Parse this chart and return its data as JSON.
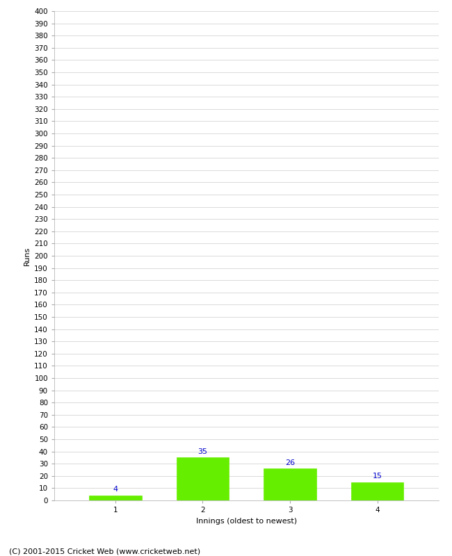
{
  "categories": [
    1,
    2,
    3,
    4
  ],
  "values": [
    4,
    35,
    26,
    15
  ],
  "bar_color": "#66ee00",
  "bar_edge_color": "#66ee00",
  "xlabel": "Innings (oldest to newest)",
  "ylabel": "Runs",
  "ylim": [
    0,
    400
  ],
  "ytick_step": 10,
  "annotation_color": "#0000cc",
  "annotation_fontsize": 8,
  "axis_label_fontsize": 8,
  "tick_fontsize": 7.5,
  "background_color": "#ffffff",
  "grid_color": "#cccccc",
  "footer_text": "(C) 2001-2015 Cricket Web (www.cricketweb.net)",
  "footer_fontsize": 8,
  "footer_color": "#000000"
}
